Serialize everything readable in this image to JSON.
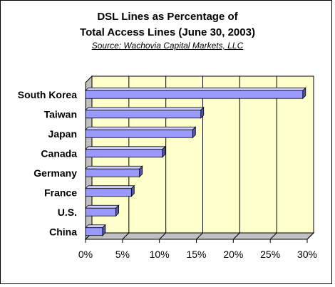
{
  "chart_data": {
    "type": "bar",
    "orientation": "horizontal",
    "title_line1": "DSL Lines as Percentage of",
    "title_line2": "Total Access Lines (June 30, 2003)",
    "subtitle": "Source: Wachovia Capital Markets, LLC",
    "categories": [
      "South Korea",
      "Taiwan",
      "Japan",
      "Canada",
      "Germany",
      "France",
      "U.S.",
      "China"
    ],
    "values": [
      29.4,
      15.6,
      14.5,
      10.4,
      7.3,
      6.2,
      4.1,
      2.3
    ],
    "xlim": [
      0,
      30
    ],
    "xticks": [
      "0%",
      "5%",
      "10%",
      "15%",
      "20%",
      "25%",
      "30%"
    ],
    "grid": true,
    "colors": {
      "bar": "#9999ff",
      "bar_top": "#ccccff",
      "bar_side": "#5555aa",
      "plot_back": "#ffffcc",
      "plot_floor": "#c0c0c0",
      "grid": "#000000"
    }
  }
}
